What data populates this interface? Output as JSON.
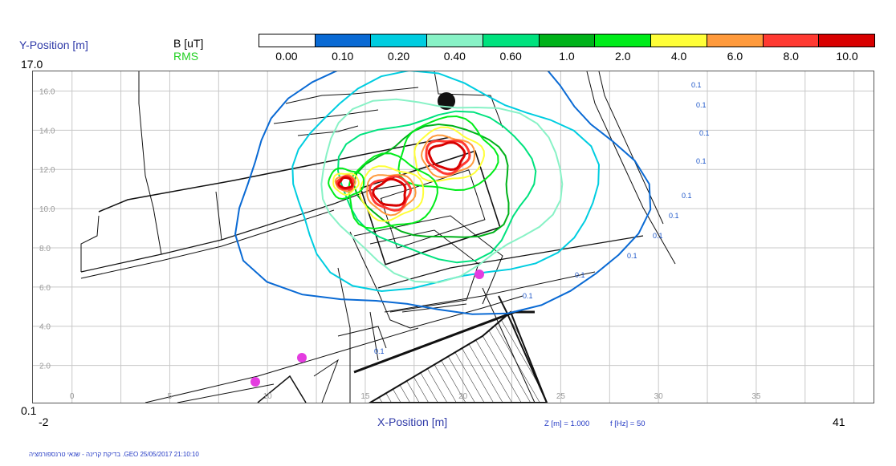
{
  "header": {
    "y_axis_title": "Y-Position [m]",
    "quantity": "B [uT]",
    "mode": "RMS",
    "y_max": "17.0",
    "y_min": "0.1",
    "x_min": "-2",
    "x_max": "41",
    "x_axis_title": "X-Position [m]",
    "z_info": "Z [m] = 1.000",
    "freq_info": "f [Hz] = 50"
  },
  "legend": {
    "labels": [
      "0.00",
      "0.10",
      "0.20",
      "0.40",
      "0.60",
      "1.0",
      "2.0",
      "4.0",
      "6.0",
      "8.0",
      "10.0"
    ],
    "colors": [
      "#ffffff",
      "#0a6ad4",
      "#00cde0",
      "#88f2c6",
      "#00e27e",
      "#00b21a",
      "#00ec1a",
      "#ffff38",
      "#ff9a3c",
      "#ff3a32",
      "#d80000"
    ]
  },
  "chart_data": {
    "type": "heatmap",
    "title": "B [uT] RMS",
    "xlabel": "X-Position [m]",
    "ylabel": "Y-Position [m]",
    "xlim": [
      -2,
      41
    ],
    "ylim": [
      0.1,
      17.0
    ],
    "x_ticks": [
      0,
      5,
      10,
      15,
      20,
      25,
      30,
      35
    ],
    "y_ticks": [
      2.0,
      4.0,
      6.0,
      8.0,
      10.0,
      12.0,
      14.0,
      16.0
    ],
    "contour_levels": [
      0.1,
      0.2,
      0.4,
      0.6,
      1.0,
      2.0,
      4.0,
      6.0,
      8.0,
      10.0
    ],
    "sources": [
      {
        "x": 19.2,
        "y": 12.7
      },
      {
        "x": 16.3,
        "y": 10.8
      },
      {
        "x": 14.0,
        "y": 11.3
      }
    ],
    "contour_labels": [
      "0.1",
      "0.1",
      "0.1",
      "0.1",
      "0.1",
      "0.1",
      "0.1",
      "0.1",
      "0.1",
      "0.1",
      "0.1"
    ],
    "grid": true
  },
  "footer": {
    "text": "בדיקת קרינה - שנאי טרנספורמציה .GEO   25/05/2017   21:10:10"
  }
}
